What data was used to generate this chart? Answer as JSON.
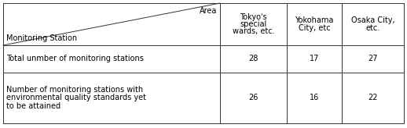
{
  "header_diag_top": "Area",
  "header_diag_bottom": "Monitoring Station",
  "col_headers": [
    [
      "Tokyo's",
      "special",
      "wards, etc."
    ],
    [
      "Yokohama",
      "City, etc"
    ],
    [
      "Osaka City,",
      "etc."
    ]
  ],
  "row1_label": "Total unmber of monitoring stations",
  "row1_vals": [
    "28",
    "17",
    "27"
  ],
  "row2_label": [
    "Number of monitoring stations with",
    "environmental quality standards yet",
    "to be attained"
  ],
  "row2_vals": [
    "26",
    "16",
    "22"
  ],
  "bg_color": "#ffffff",
  "line_color": "#333333",
  "text_color": "#000000",
  "font_size": 7.0,
  "lw": 0.7,
  "fig_width": 5.18,
  "fig_height": 1.64,
  "dpi": 100
}
